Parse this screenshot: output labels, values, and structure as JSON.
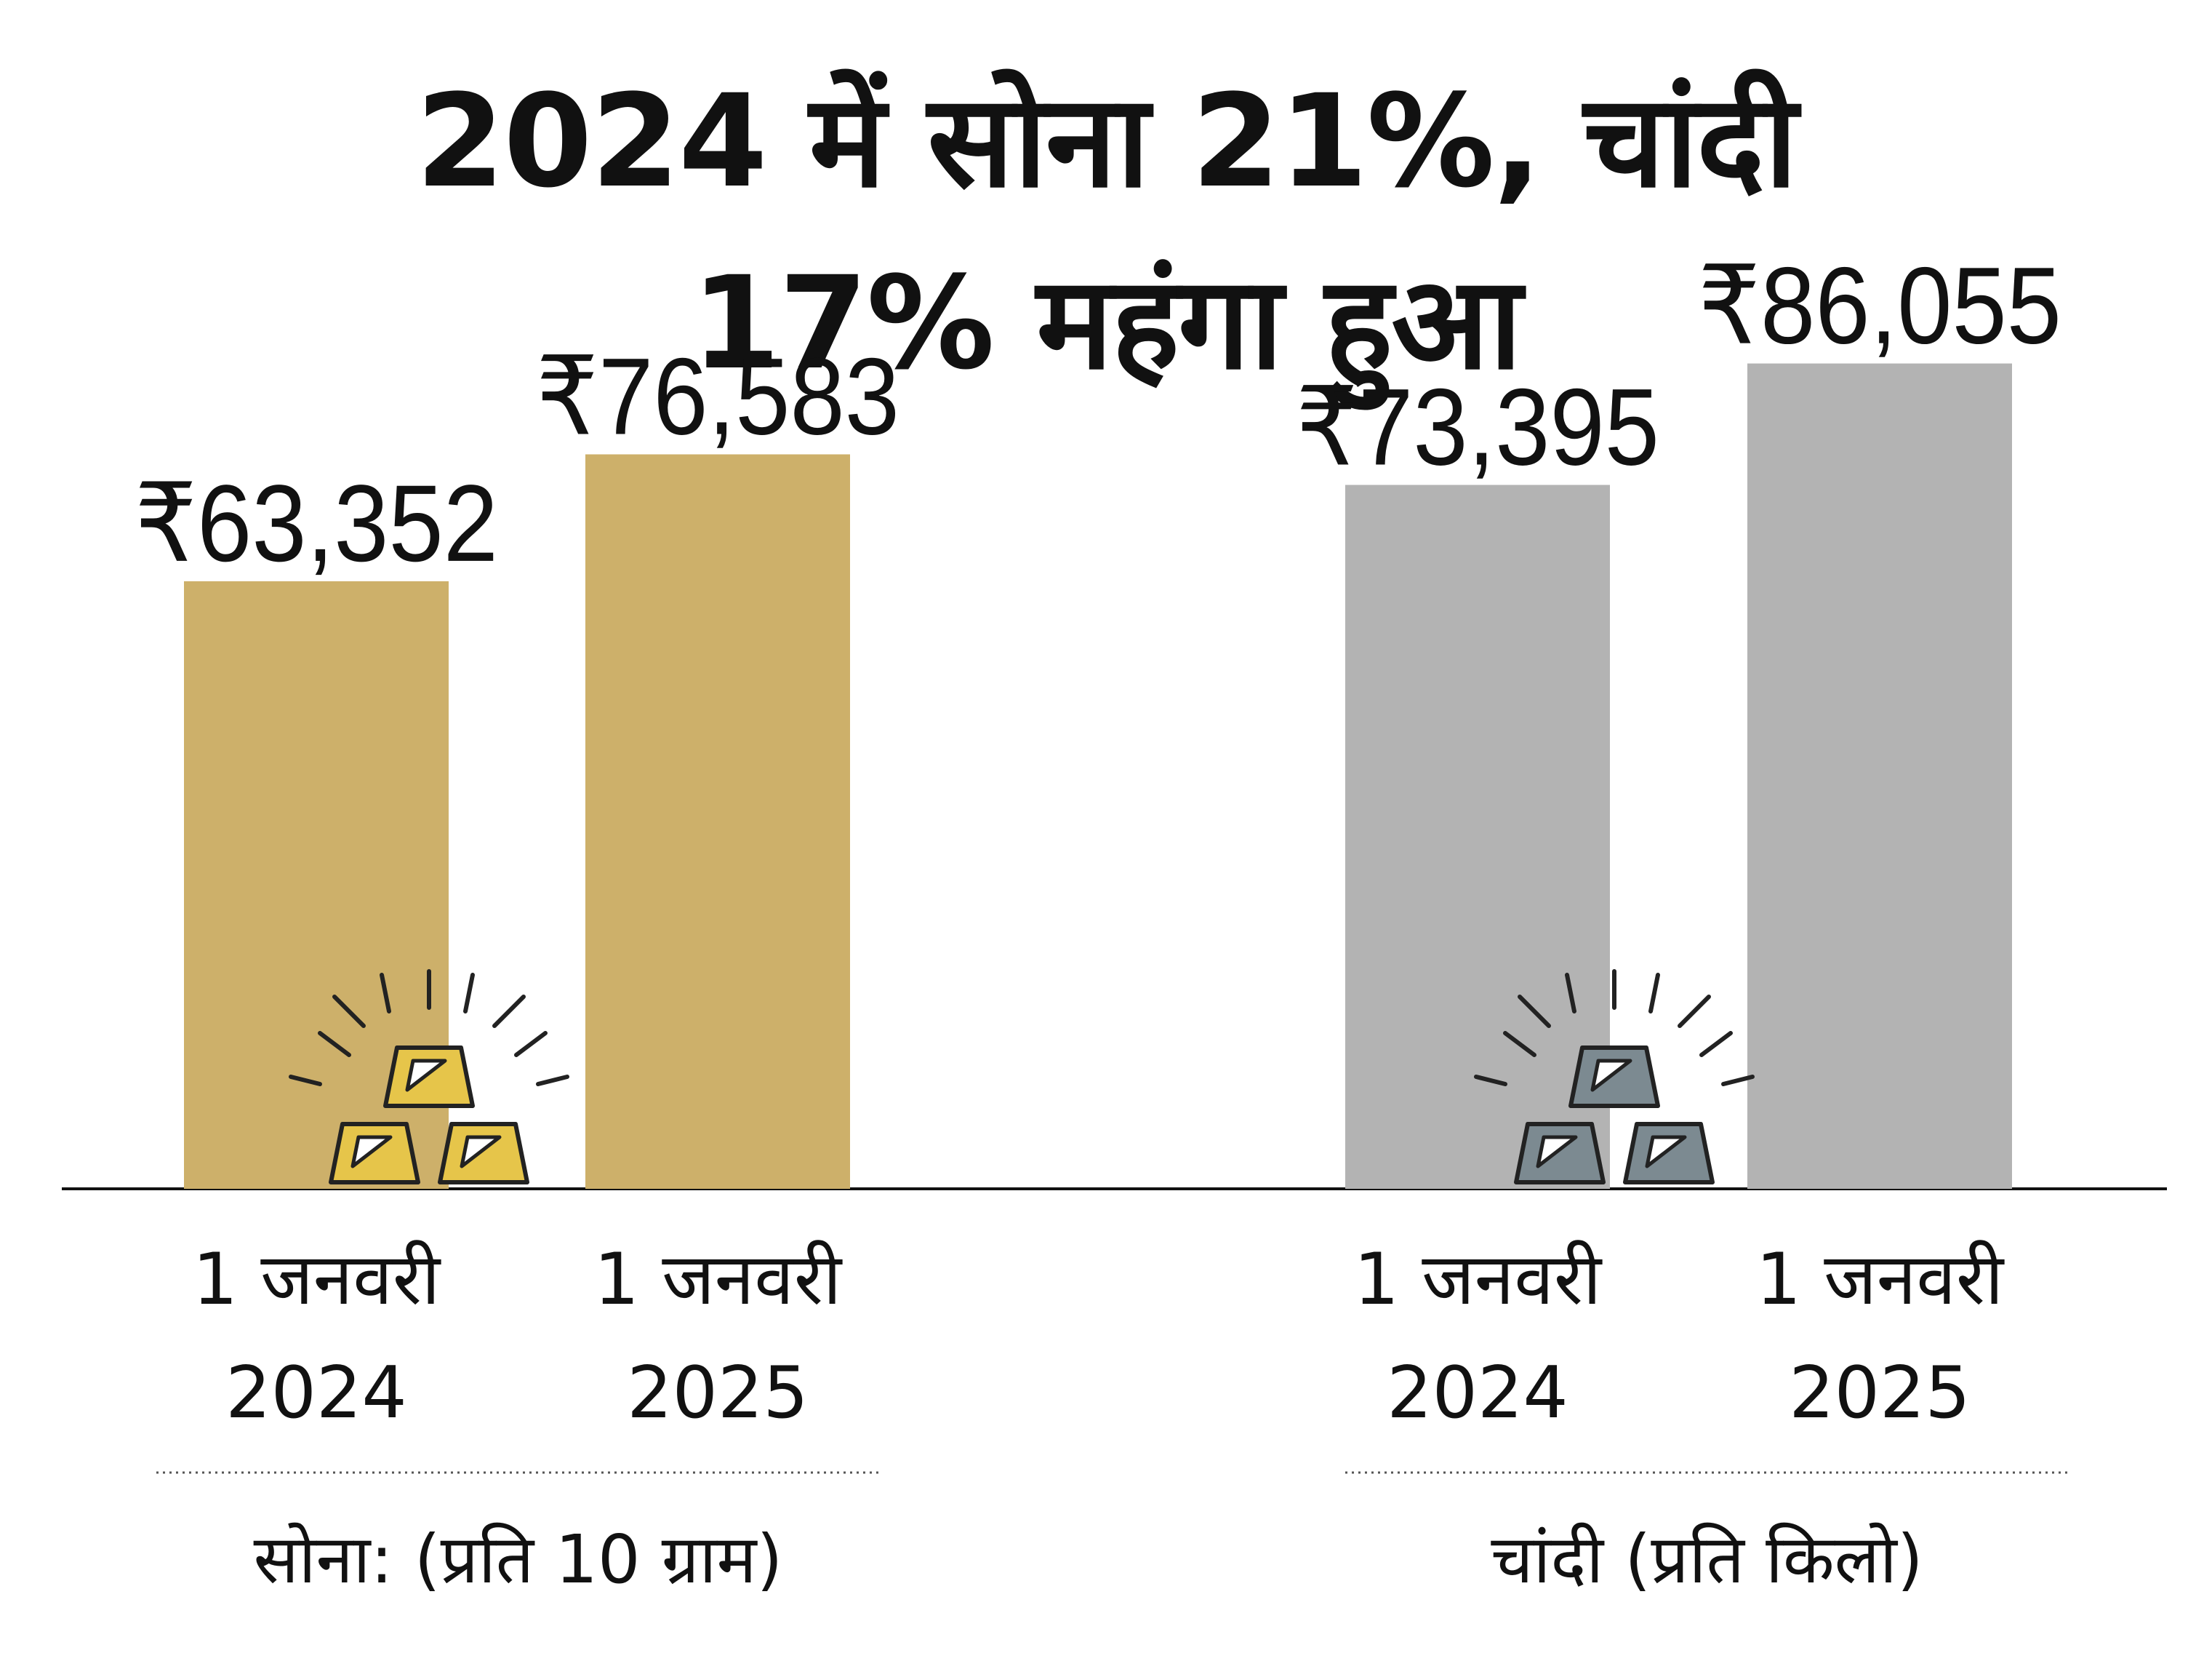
{
  "title": {
    "line1": "2024 में सोना 21%, चांदी",
    "line2": "17% महंगा हुआ"
  },
  "colors": {
    "gold": "#cdb06a",
    "silver": "#b3b3b3",
    "gold_icon": "#e6c54a",
    "silver_icon": "#7c8a91",
    "axis": "#111111"
  },
  "icons": [
    "gold-bars-icon",
    "silver-bars-icon"
  ],
  "chart_data": [
    {
      "type": "bar",
      "title": "सोना: (प्रति 10 ग्राम)",
      "categories": [
        "1 जनवरी 2024",
        "1 जनवरी 2025"
      ],
      "values": [
        63352,
        76583
      ],
      "labels": [
        "₹63,352",
        "₹76,583"
      ],
      "cat_line1": [
        "1 जनवरी",
        "1 जनवरी"
      ],
      "cat_line2": [
        "2024",
        "2025"
      ],
      "ylim": [
        0,
        110000
      ],
      "xlabel": "",
      "ylabel": ""
    },
    {
      "type": "bar",
      "title": "चांदी (प्रति किलो)",
      "categories": [
        "1 जनवरी 2024",
        "1 जनवरी 2025"
      ],
      "values": [
        73395,
        86055
      ],
      "labels": [
        "₹73,395",
        "₹86,055"
      ],
      "cat_line1": [
        "1 जनवरी",
        "1 जनवरी"
      ],
      "cat_line2": [
        "2024",
        "2025"
      ],
      "ylim": [
        0,
        110000
      ],
      "xlabel": "",
      "ylabel": ""
    }
  ]
}
